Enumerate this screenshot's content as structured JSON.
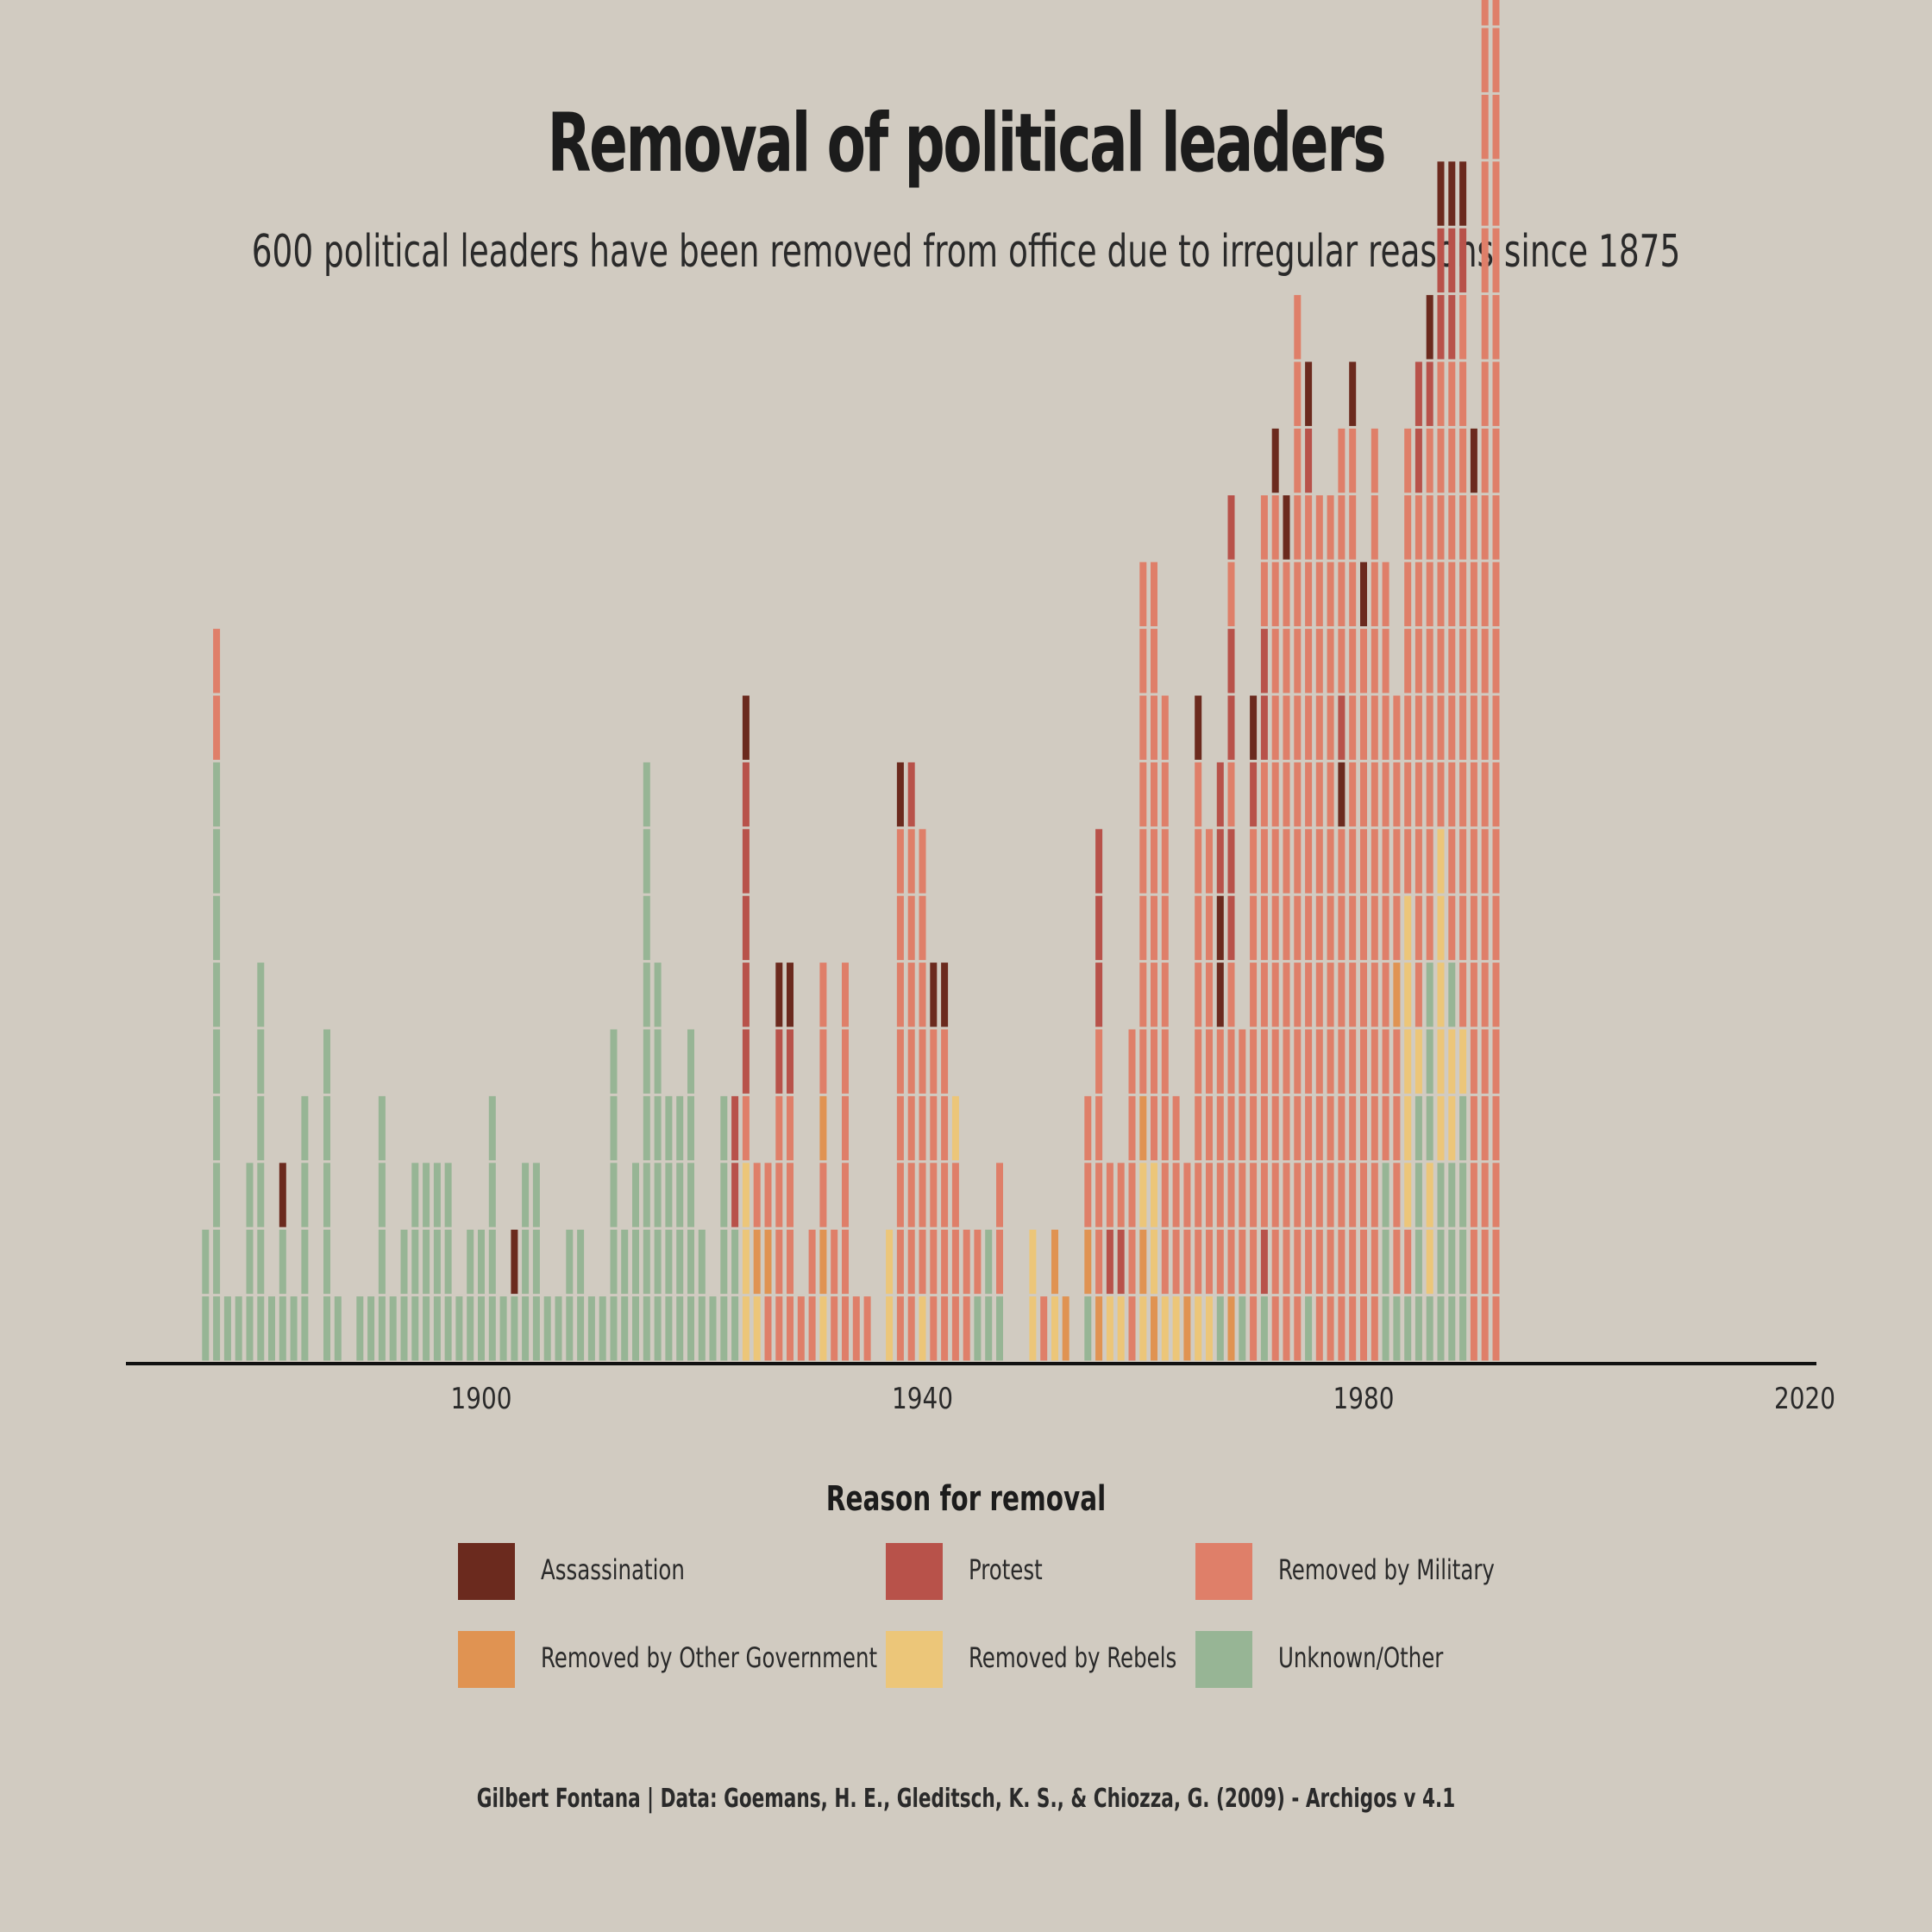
{
  "header": {
    "title": "Removal of political leaders",
    "subtitle": "600 political leaders have been removed from office due to irregular reasons since 1875"
  },
  "legend": {
    "title": "Reason for removal",
    "items": [
      {
        "label": "Assassination",
        "color": "#6b2a1e"
      },
      {
        "label": "Protest",
        "color": "#b8524a"
      },
      {
        "label": "Removed by Military",
        "color": "#df7f69"
      },
      {
        "label": "Removed by Other Government",
        "color": "#e09352"
      },
      {
        "label": "Removed by Rebels",
        "color": "#ecc679"
      },
      {
        "label": "Unknown/Other",
        "color": "#97b595"
      }
    ]
  },
  "caption": "Gilbert Fontana | Data: Goemans, H. E., Gleditsch, K. S., & Chiozza, G. (2009) - Archigos v 4.1",
  "chart_data": {
    "type": "bar",
    "stacked": true,
    "x_ticks": [
      "1900",
      "1940",
      "1980",
      "2020"
    ],
    "x_range": [
      1868,
      2021
    ],
    "colors": {
      "A": "#6b2a1e",
      "P": "#b8524a",
      "M": "#df7f69",
      "O": "#e09352",
      "R": "#ecc679",
      "U": "#97b595"
    },
    "series_order": [
      "Assassination",
      "Protest",
      "Removed by Military",
      "Removed by Other Government",
      "Removed by Rebels",
      "Unknown/Other"
    ],
    "code_map": {
      "A": "Assassination",
      "P": "Protest",
      "M": "Removed by Military",
      "O": "Removed by Other Government",
      "R": "Removed by Rebels",
      "U": "Unknown/Other"
    },
    "bars": [
      {
        "year": 1875,
        "stack": "UU"
      },
      {
        "year": 1876,
        "stack": "UUUUUUUUUMM"
      },
      {
        "year": 1877,
        "stack": "U"
      },
      {
        "year": 1878,
        "stack": "U"
      },
      {
        "year": 1879,
        "stack": "UUU"
      },
      {
        "year": 1880,
        "stack": "UUUUUU"
      },
      {
        "year": 1881,
        "stack": "U"
      },
      {
        "year": 1882,
        "stack": "UUA"
      },
      {
        "year": 1883,
        "stack": "U"
      },
      {
        "year": 1884,
        "stack": "UUUU"
      },
      {
        "year": 1886,
        "stack": "UUUUU"
      },
      {
        "year": 1887,
        "stack": "U"
      },
      {
        "year": 1889,
        "stack": "U"
      },
      {
        "year": 1890,
        "stack": "U"
      },
      {
        "year": 1891,
        "stack": "UUUU"
      },
      {
        "year": 1892,
        "stack": "U"
      },
      {
        "year": 1893,
        "stack": "UU"
      },
      {
        "year": 1894,
        "stack": "UUU"
      },
      {
        "year": 1895,
        "stack": "UUU"
      },
      {
        "year": 1896,
        "stack": "UUU"
      },
      {
        "year": 1897,
        "stack": "UUU"
      },
      {
        "year": 1898,
        "stack": "U"
      },
      {
        "year": 1899,
        "stack": "UU"
      },
      {
        "year": 1900,
        "stack": "UU"
      },
      {
        "year": 1901,
        "stack": "UUUU"
      },
      {
        "year": 1902,
        "stack": "U"
      },
      {
        "year": 1903,
        "stack": "UA"
      },
      {
        "year": 1904,
        "stack": "UUU"
      },
      {
        "year": 1905,
        "stack": "UUU"
      },
      {
        "year": 1906,
        "stack": "U"
      },
      {
        "year": 1907,
        "stack": "U"
      },
      {
        "year": 1908,
        "stack": "UU"
      },
      {
        "year": 1909,
        "stack": "UU"
      },
      {
        "year": 1910,
        "stack": "U"
      },
      {
        "year": 1911,
        "stack": "U"
      },
      {
        "year": 1912,
        "stack": "UUUUU"
      },
      {
        "year": 1913,
        "stack": "UU"
      },
      {
        "year": 1914,
        "stack": "UUU"
      },
      {
        "year": 1915,
        "stack": "UUUUUUUUU"
      },
      {
        "year": 1916,
        "stack": "UUUUUU"
      },
      {
        "year": 1917,
        "stack": "UUUU"
      },
      {
        "year": 1918,
        "stack": "UUUU"
      },
      {
        "year": 1919,
        "stack": "UUUUU"
      },
      {
        "year": 1920,
        "stack": "UU"
      },
      {
        "year": 1921,
        "stack": "U"
      },
      {
        "year": 1922,
        "stack": "UUUU"
      },
      {
        "year": 1923,
        "stack": "UUPP"
      },
      {
        "year": 1924,
        "stack": "RRRMPPPPPA"
      },
      {
        "year": 1925,
        "stack": "ROM"
      },
      {
        "year": 1926,
        "stack": "MOM"
      },
      {
        "year": 1927,
        "stack": "MMMMPA"
      },
      {
        "year": 1928,
        "stack": "MMMMPA"
      },
      {
        "year": 1929,
        "stack": "M"
      },
      {
        "year": 1930,
        "stack": "MM"
      },
      {
        "year": 1931,
        "stack": "ROMOMM"
      },
      {
        "year": 1932,
        "stack": "MM"
      },
      {
        "year": 1933,
        "stack": "MMMMMM"
      },
      {
        "year": 1934,
        "stack": "M"
      },
      {
        "year": 1935,
        "stack": "M"
      },
      {
        "year": 1937,
        "stack": "RR"
      },
      {
        "year": 1938,
        "stack": "MMMMMMMMA"
      },
      {
        "year": 1939,
        "stack": "MMMMMMMMP"
      },
      {
        "year": 1940,
        "stack": "RMMMMMMM"
      },
      {
        "year": 1941,
        "stack": "MMMMMA"
      },
      {
        "year": 1942,
        "stack": "MMMMMA"
      },
      {
        "year": 1943,
        "stack": "MMMR"
      },
      {
        "year": 1944,
        "stack": "MM"
      },
      {
        "year": 1945,
        "stack": "UM"
      },
      {
        "year": 1946,
        "stack": "UU"
      },
      {
        "year": 1947,
        "stack": "UMM"
      },
      {
        "year": 1950,
        "stack": "RR"
      },
      {
        "year": 1951,
        "stack": "M"
      },
      {
        "year": 1952,
        "stack": "RO"
      },
      {
        "year": 1953,
        "stack": "O"
      },
      {
        "year": 1955,
        "stack": "UOMM"
      },
      {
        "year": 1956,
        "stack": "OMMMMPPP"
      },
      {
        "year": 1957,
        "stack": "RPM"
      },
      {
        "year": 1958,
        "stack": "RPM"
      },
      {
        "year": 1959,
        "stack": "MMMMM"
      },
      {
        "year": 1960,
        "stack": "ROROMMMMMMMM"
      },
      {
        "year": 1961,
        "stack": "ORRMMMMMMMMM"
      },
      {
        "year": 1962,
        "stack": "RMMMMMMMMM"
      },
      {
        "year": 1963,
        "stack": "RMMM"
      },
      {
        "year": 1964,
        "stack": "OMM"
      },
      {
        "year": 1965,
        "stack": "RMMMMMMMMA"
      },
      {
        "year": 1966,
        "stack": "RMMMMMMM"
      },
      {
        "year": 1967,
        "stack": "UMMMMAAPP"
      },
      {
        "year": 1968,
        "stack": "OMMMMMPPMPPMP"
      },
      {
        "year": 1969,
        "stack": "UMMMM"
      },
      {
        "year": 1970,
        "stack": "MMMMMMMMPA"
      },
      {
        "year": 1971,
        "stack": "UPMMMMMMMPPMM"
      },
      {
        "year": 1972,
        "stack": "MMMMMMMMMMMMMA"
      },
      {
        "year": 1973,
        "stack": "MMMMMMMMMMMMA"
      },
      {
        "year": 1974,
        "stack": "MMMMMMMMMMMMMMMM"
      },
      {
        "year": 1975,
        "stack": "UMMMMMMMMMMMMPA"
      },
      {
        "year": 1976,
        "stack": "MMMMMMMMMMMMM"
      },
      {
        "year": 1977,
        "stack": "MMMMMMMMMMMMM"
      },
      {
        "year": 1978,
        "stack": "MMMMMMMMAPMMMM"
      },
      {
        "year": 1979,
        "stack": "MMMMMMMMMMMMMMA"
      },
      {
        "year": 1980,
        "stack": "MMMMMMMMMMMA"
      },
      {
        "year": 1981,
        "stack": "MMMMMMMMMMMMMM"
      },
      {
        "year": 1982,
        "stack": "UUUMMMMMMMMM"
      },
      {
        "year": 1983,
        "stack": "UMMMMOMMMM"
      }
    ],
    "bars_tail": [
      {
        "year": 1984,
        "stack": "UMRRRRRMMMMMMM"
      },
      {
        "year": 1985,
        "stack": "UUUURMMMMMMMMPP"
      },
      {
        "year": 1986,
        "stack": "URRUUUMMMMMMMMPA"
      },
      {
        "year": 1987,
        "stack": "UUURRRRRMMMMMMMPPA"
      },
      {
        "year": 1988,
        "stack": "UUURRUMMMMMMMMMPPA"
      },
      {
        "year": 1989,
        "stack": "UUUURMMMMMMMMMMMPA"
      },
      {
        "year": 1990,
        "stack": "MMMMMMMMMMMMMA"
      },
      {
        "year": 1991,
        "stack": "MMMMMMMMMMMMMMMMMMMMMMMMPPPPPA"
      },
      {
        "year": 1992,
        "stack": "MMMMMMMMMMMMMMMMMMMMMMMMPPPPA"
      }
    ]
  }
}
